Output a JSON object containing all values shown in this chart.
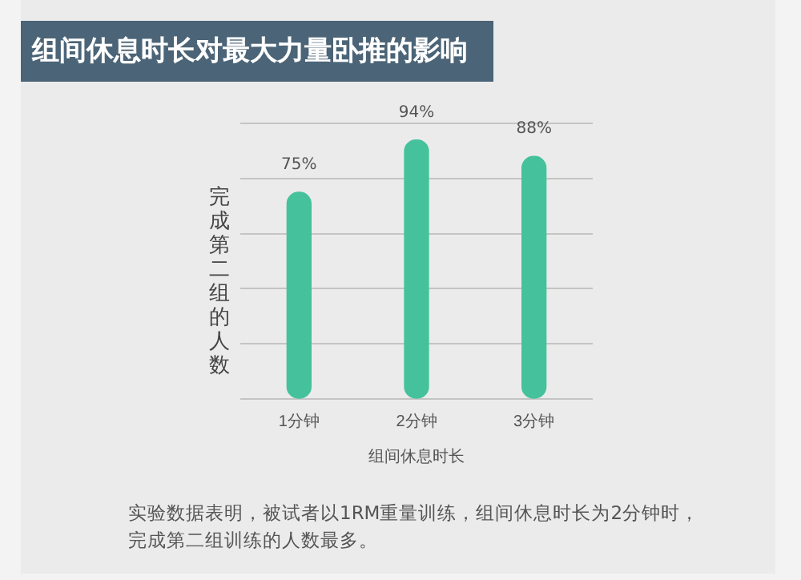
{
  "chart_data": {
    "type": "bar",
    "title": "组间休息时长对最大力量卧推的影响",
    "ylabel": "完成第二组的人数",
    "xlabel": "组间休息时长",
    "categories": [
      "1分钟",
      "2分钟",
      "3分钟"
    ],
    "values": [
      75,
      94,
      88
    ],
    "value_labels": [
      "75%",
      "94%",
      "88%"
    ],
    "color": "#45c29b",
    "ylim": [
      0,
      100
    ],
    "yticks": [
      {
        "value": 0,
        "label": null
      },
      {
        "value": 20,
        "label": null
      },
      {
        "value": 40,
        "label": null
      },
      {
        "value": 60,
        "label": null
      },
      {
        "value": 80,
        "label": null
      },
      {
        "value": 100,
        "label": null
      }
    ],
    "tick_labels": "x",
    "grid": "y",
    "legend": false,
    "annotations": [
      "实验数据表明，被试者以1RM重量训练，组间休息时长为2分钟时，完成第二组训练的人数最多。"
    ]
  }
}
